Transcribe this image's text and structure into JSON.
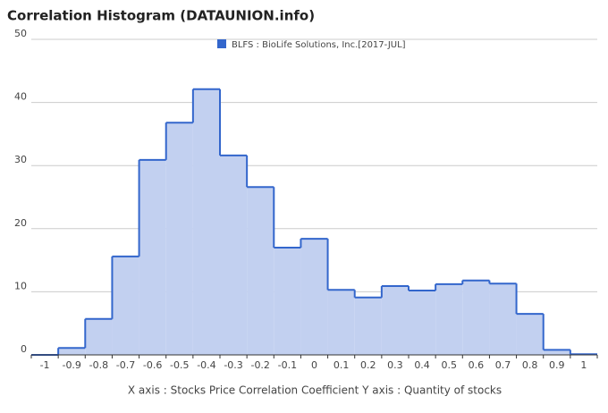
{
  "chart_data": {
    "type": "histogram",
    "title": "Correlation Histogram (DATAUNION.info)",
    "xlabel": "X axis : Stocks Price Correlation Coefficient  Y axis : Quantity of stocks",
    "legend_position": "top",
    "series": [
      {
        "name": "BLFS : BioLife Solutions, Inc.[2017-JUL]",
        "color": "#3366cc",
        "fill": "#c2d0f0"
      }
    ],
    "bins": [
      -1.05,
      -0.95,
      -0.85,
      -0.75,
      -0.65,
      -0.55,
      -0.45,
      -0.35,
      -0.25,
      -0.15,
      -0.05,
      0.05,
      0.15,
      0.25,
      0.35,
      0.45,
      0.55,
      0.65,
      0.75,
      0.85,
      0.95,
      1.05
    ],
    "counts": [
      0,
      1.1,
      5.7,
      15.6,
      30.9,
      36.8,
      42.1,
      31.6,
      26.6,
      17,
      18.4,
      10.3,
      9.1,
      10.9,
      10.2,
      11.2,
      11.8,
      11.3,
      6.5,
      0.8,
      0.1
    ],
    "xlim": [
      -1.05,
      1.05
    ],
    "xticks": [
      -1,
      -0.9,
      -0.8,
      -0.7,
      -0.6,
      -0.5,
      -0.4,
      -0.3,
      -0.2,
      -0.1,
      0,
      0.1,
      0.2,
      0.3,
      0.4,
      0.5,
      0.6,
      0.7,
      0.8,
      0.9,
      1
    ],
    "ylim": [
      0,
      50
    ],
    "yticks": [
      0,
      10,
      20,
      30,
      40,
      50
    ],
    "grid": true
  }
}
